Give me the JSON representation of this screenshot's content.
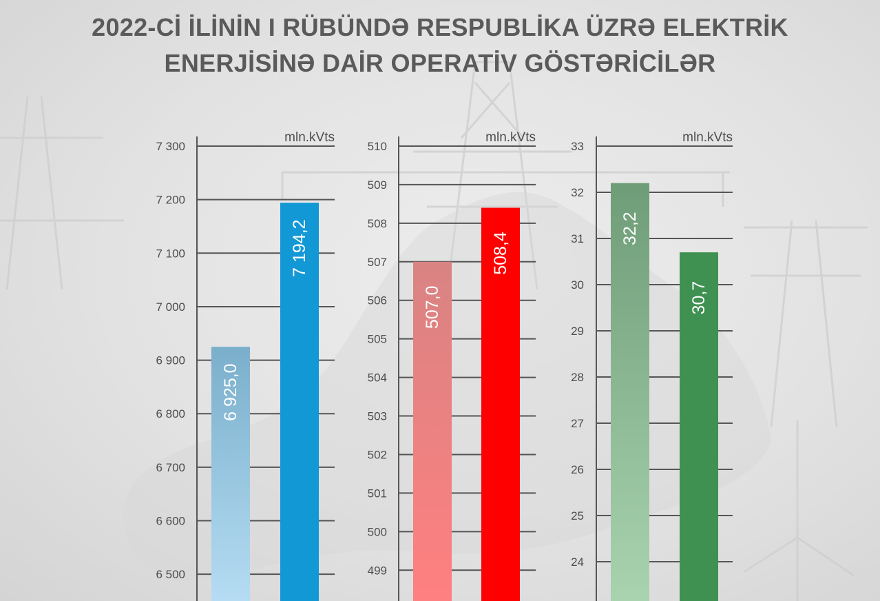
{
  "title": {
    "line1": "2022-Cİ İLİNİN I RÜBÜNDƏ RESPUBLİKA ÜZRƏ ELEKTRİK",
    "line2": "ENERJİSİNƏ DAİR OPERATİV GÖSTƏRİCİLƏR"
  },
  "colors": {
    "title": "#5a5a5a",
    "axis": "#555555",
    "tick_label": "#4d4d4d",
    "bar_label": "#ffffff"
  },
  "chart_data": [
    {
      "type": "bar",
      "unit": "mln.kVts",
      "ylim": [
        6450,
        7300
      ],
      "yticks": [
        6500,
        6600,
        6700,
        6800,
        6900,
        7000,
        7100,
        7200,
        7300
      ],
      "ytick_labels": [
        "6 500",
        "6 600",
        "6 700",
        "6 800",
        "6 900",
        "7 000",
        "7 100",
        "7 200",
        "7 300"
      ],
      "grid": true,
      "bars": [
        {
          "value": 6925.0,
          "label": "6 925,0",
          "color_top": "#7aafcb",
          "color_bottom": "#b5dcf3"
        },
        {
          "value": 7194.2,
          "label": "7 194,2",
          "color_top": "#1398d6",
          "color_bottom": "#1398d6"
        }
      ]
    },
    {
      "type": "bar",
      "unit": "mln.kVts",
      "ylim": [
        498.2,
        510
      ],
      "yticks": [
        499,
        500,
        501,
        502,
        503,
        504,
        505,
        506,
        507,
        508,
        509,
        510
      ],
      "ytick_labels": [
        "499",
        "500",
        "501",
        "502",
        "503",
        "504",
        "505",
        "506",
        "507",
        "508",
        "509",
        "510"
      ],
      "grid": true,
      "bars": [
        {
          "value": 507.0,
          "label": "507,0",
          "color_top": "#d98383",
          "color_bottom": "#ff8080"
        },
        {
          "value": 508.4,
          "label": "508,4",
          "color_top": "#ff0000",
          "color_bottom": "#ff0000"
        }
      ]
    },
    {
      "type": "bar",
      "unit": "mln.kVts",
      "ylim": [
        23.15,
        33
      ],
      "yticks": [
        24,
        25,
        26,
        27,
        28,
        29,
        30,
        31,
        32,
        33
      ],
      "ytick_labels": [
        "24",
        "25",
        "26",
        "27",
        "28",
        "29",
        "30",
        "31",
        "32",
        "33"
      ],
      "grid": true,
      "bars": [
        {
          "value": 32.2,
          "label": "32,2",
          "color_top": "#6f9d78",
          "color_bottom": "#a8d3ae"
        },
        {
          "value": 30.7,
          "label": "30,7",
          "color_top": "#3f9151",
          "color_bottom": "#3f9151"
        }
      ]
    }
  ]
}
